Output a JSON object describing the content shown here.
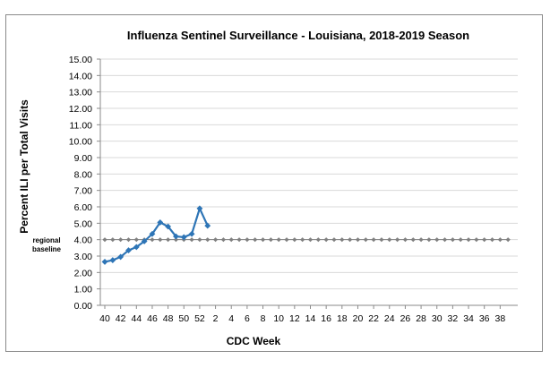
{
  "chart_data": {
    "type": "line",
    "title": "Influenza Sentinel Surveillance - Louisiana, 2018-2019 Season",
    "xlabel": "CDC Week",
    "ylabel": "Percent ILI per Total Visits",
    "ylim": [
      0,
      15
    ],
    "y_ticks": [
      "0.00",
      "1.00",
      "2.00",
      "3.00",
      "4.00",
      "5.00",
      "6.00",
      "7.00",
      "8.00",
      "9.00",
      "10.00",
      "11.00",
      "12.00",
      "13.00",
      "14.00",
      "15.00"
    ],
    "x_tick_labels": [
      "40",
      "42",
      "44",
      "46",
      "48",
      "50",
      "52",
      "2",
      "4",
      "6",
      "8",
      "10",
      "12",
      "14",
      "16",
      "18",
      "20",
      "22",
      "24",
      "26",
      "28",
      "30",
      "32",
      "34",
      "36",
      "38"
    ],
    "weeks_total": 52,
    "series": [
      {
        "name": "Percent ILI",
        "color": "#2e75b6",
        "x": [
          0,
          1,
          2,
          3,
          4,
          5,
          6,
          7,
          8,
          9,
          10,
          11,
          12,
          13
        ],
        "values": [
          2.65,
          2.75,
          2.95,
          3.35,
          3.55,
          3.9,
          4.35,
          5.05,
          4.8,
          4.2,
          4.15,
          4.35,
          5.9,
          4.85
        ]
      }
    ],
    "baseline": {
      "label_line1": "regional",
      "label_line2": "baseline",
      "value": 4.0,
      "color": "#808080"
    }
  }
}
